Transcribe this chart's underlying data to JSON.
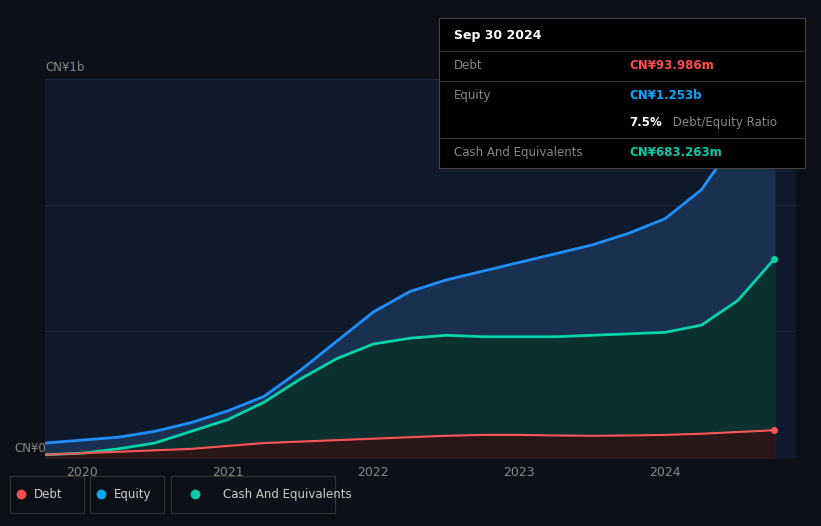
{
  "background_color": "#0d1117",
  "plot_bg_color": "#0e1a2b",
  "grid_color": "#1e2d3d",
  "ylabel_top": "CN¥1b",
  "ylabel_bottom": "CN¥0",
  "x_ticks": [
    2020,
    2021,
    2022,
    2023,
    2024
  ],
  "tooltip": {
    "date": "Sep 30 2024",
    "debt_label": "Debt",
    "debt_value": "CN¥93.986m",
    "equity_label": "Equity",
    "equity_value": "CN¥1.253b",
    "ratio_value": "7.5%",
    "ratio_label": " Debt/Equity Ratio",
    "cash_label": "Cash And Equivalents",
    "cash_value": "CN¥683.263m",
    "bg": "#000000",
    "border_color": "#444444",
    "label_color": "#888888",
    "debt_color": "#ff4d4d",
    "equity_color": "#00aaff",
    "cash_color": "#00ccaa",
    "ratio_bold_color": "#ffffff",
    "ratio_rest_color": "#888888"
  },
  "legend": [
    {
      "label": "Debt",
      "color": "#ff4d4d"
    },
    {
      "label": "Equity",
      "color": "#00aaff"
    },
    {
      "label": "Cash And Equivalents",
      "color": "#00ccaa"
    }
  ],
  "time": [
    2019.75,
    2020.0,
    2020.25,
    2020.5,
    2020.75,
    2021.0,
    2021.25,
    2021.5,
    2021.75,
    2022.0,
    2022.25,
    2022.5,
    2022.75,
    2023.0,
    2023.25,
    2023.5,
    2023.75,
    2024.0,
    2024.25,
    2024.5,
    2024.75
  ],
  "equity": [
    0.05,
    0.06,
    0.07,
    0.09,
    0.12,
    0.16,
    0.21,
    0.3,
    0.4,
    0.5,
    0.57,
    0.61,
    0.64,
    0.67,
    0.7,
    0.73,
    0.77,
    0.82,
    0.92,
    1.1,
    1.253
  ],
  "cash": [
    0.01,
    0.015,
    0.03,
    0.05,
    0.09,
    0.13,
    0.19,
    0.27,
    0.34,
    0.39,
    0.41,
    0.42,
    0.415,
    0.415,
    0.415,
    0.42,
    0.425,
    0.43,
    0.455,
    0.54,
    0.683
  ],
  "debt": [
    0.01,
    0.015,
    0.02,
    0.025,
    0.03,
    0.04,
    0.05,
    0.055,
    0.06,
    0.065,
    0.07,
    0.075,
    0.078,
    0.078,
    0.076,
    0.075,
    0.076,
    0.078,
    0.082,
    0.088,
    0.094
  ],
  "equity_line_color": "#1e90ff",
  "cash_line_color": "#00d4aa",
  "debt_line_color": "#ff5555",
  "equity_fill_color": "#1a3050",
  "cash_fill_color": "#0a3030",
  "debt_fill_color": "#2a1818",
  "ylim": [
    0,
    1.3
  ]
}
